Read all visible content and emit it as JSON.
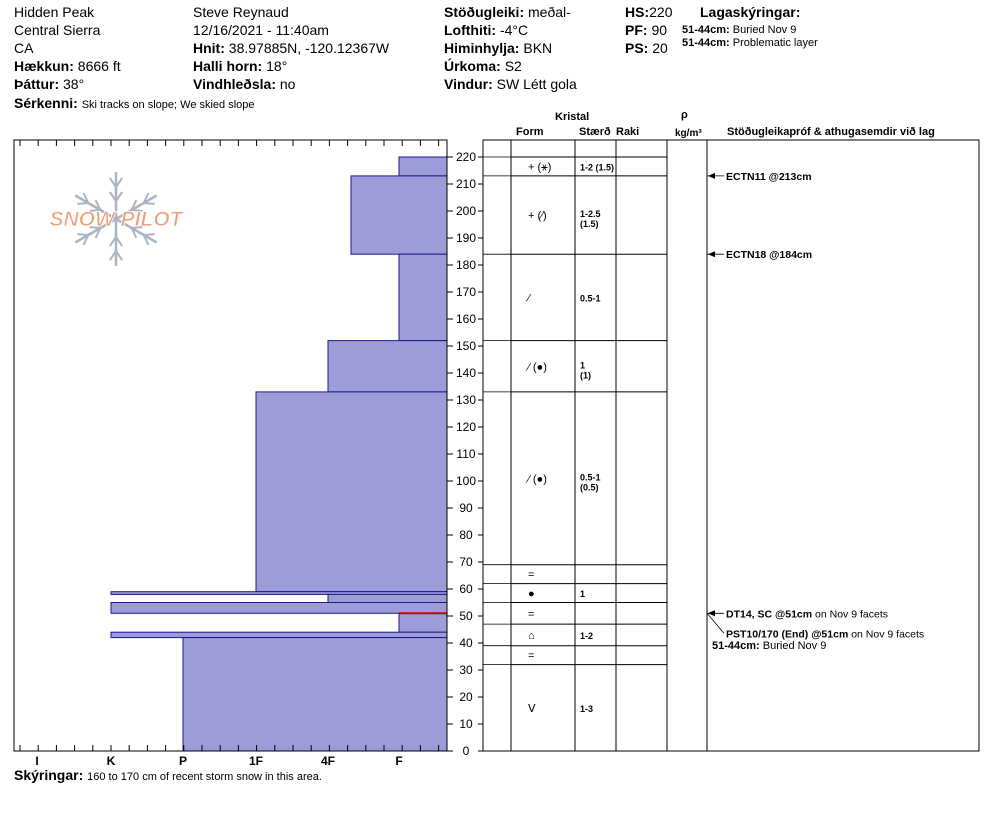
{
  "header": {
    "location": "Hidden Peak",
    "range": "Central Sierra",
    "state": "CA",
    "elevation_label": "Hækkun:",
    "elevation": "8666 ft",
    "aspect_label": "Þáttur:",
    "aspect": "38°",
    "observer": "Steve Reynaud",
    "datetime": "12/16/2021 - 11:40am",
    "coords_label": "Hnit:",
    "coords": "38.97885N, -120.12367W",
    "slope_label": "Halli horn:",
    "slope": "18°",
    "wind_loading_label": "Vindhleðsla:",
    "wind_loading": "no",
    "stability_label": "Stöðugleiki:",
    "stability": "meðal-",
    "air_temp_label": "Lofthiti:",
    "air_temp": "-4°C",
    "sky_label": "Himinhylja:",
    "sky": "BKN",
    "precip_label": "Úrkoma:",
    "precip": "S2",
    "wind_label": "Vindur:",
    "wind": "SW Létt gola",
    "hs_label": "HS:",
    "hs": "220",
    "pf_label": "PF:",
    "pf": "90",
    "ps_label": "PS:",
    "ps": "20",
    "layer_notes_label": "Lagaskýringar:",
    "layer_notes": [
      {
        "range": "51-44cm:",
        "text": "Buried Nov 9"
      },
      {
        "range": "51-44cm:",
        "text": "Problematic layer"
      }
    ],
    "features_label": "Sérkenni:",
    "features": "Ski tracks on slope; We skied slope"
  },
  "columns": {
    "crystal": "Kristal",
    "form": "Form",
    "size": "Stærð",
    "moisture": "Raki",
    "rho": "ρ",
    "density_unit": "kg/m³",
    "tests": "Stöðugleikapróf & athugasemdir við lag"
  },
  "logo_text": "SNOW PILOT",
  "footer": {
    "label": "Skýringar:",
    "text": "160 to 170 cm of recent storm snow in this area."
  },
  "colors": {
    "hardness_fill": "#9c9cd8",
    "hardness_stroke": "#1a1a8c",
    "problem_layer": "#cc0000",
    "logo_orange": "#f0a07a",
    "logo_snowflake": "#aab5c3"
  },
  "chart_data": {
    "type": "bar",
    "title": "",
    "xlabel": "",
    "ylabel": "",
    "ylim": [
      0,
      220
    ],
    "y_ticks": [
      0,
      10,
      20,
      30,
      40,
      50,
      60,
      70,
      80,
      90,
      100,
      110,
      120,
      130,
      140,
      150,
      160,
      170,
      180,
      190,
      200,
      210,
      220
    ],
    "hardness_scale": [
      "I",
      "K",
      "P",
      "1F",
      "4F",
      "F"
    ],
    "hardness_layers": [
      {
        "top": 220,
        "bottom": 213,
        "hardness": "F"
      },
      {
        "top": 213,
        "bottom": 184,
        "hardness": "4F+"
      },
      {
        "top": 184,
        "bottom": 152,
        "hardness": "F"
      },
      {
        "top": 152,
        "bottom": 133,
        "hardness": "4F"
      },
      {
        "top": 133,
        "bottom": 59,
        "hardness": "1F"
      },
      {
        "top": 59,
        "bottom": 58,
        "hardness": "K"
      },
      {
        "top": 58,
        "bottom": 55,
        "hardness": "4F"
      },
      {
        "top": 55,
        "bottom": 51,
        "hardness": "K"
      },
      {
        "top": 51,
        "bottom": 44,
        "hardness": "F"
      },
      {
        "top": 44,
        "bottom": 42,
        "hardness": "K"
      },
      {
        "top": 42,
        "bottom": 0,
        "hardness": "P"
      }
    ],
    "problem_layer_height": 51,
    "crystal_layers": [
      {
        "top": 220,
        "bottom": 213,
        "form": "+ (⚹)",
        "size": "1-2 (1.5)"
      },
      {
        "top": 213,
        "bottom": 184,
        "form": "+ (⁄)",
        "size": "1-2.5 (1.5)"
      },
      {
        "top": 184,
        "bottom": 152,
        "form": "⁄",
        "size": "0.5-1"
      },
      {
        "top": 152,
        "bottom": 133,
        "form": "⁄ (●)",
        "size": "1 (1)"
      },
      {
        "top": 133,
        "bottom": 69,
        "form": "⁄ (●)",
        "size": "0.5-1 (0.5)"
      },
      {
        "top": 69,
        "bottom": 62,
        "form": "=",
        "size": ""
      },
      {
        "top": 62,
        "bottom": 55,
        "form": "●",
        "size": "1"
      },
      {
        "top": 55,
        "bottom": 47,
        "form": "=",
        "size": ""
      },
      {
        "top": 47,
        "bottom": 39,
        "form": "⌂",
        "size": "1-2"
      },
      {
        "top": 39,
        "bottom": 32,
        "form": "=",
        "size": ""
      },
      {
        "top": 32,
        "bottom": 0,
        "form": "ⴸ",
        "size": "1-3"
      }
    ],
    "tests": [
      {
        "height": 213,
        "name": "ECTN11 @213cm",
        "note": ""
      },
      {
        "height": 184,
        "name": "ECTN18 @184cm",
        "note": ""
      },
      {
        "height": 51,
        "name": "DT14, SC @51cm",
        "note": "on Nov 9 facets"
      },
      {
        "height": 51,
        "name": "PST10/170 (End) @51cm",
        "note": "on Nov 9 facets"
      }
    ],
    "comment": {
      "range": "51-44cm:",
      "text": "Buried Nov 9"
    }
  }
}
